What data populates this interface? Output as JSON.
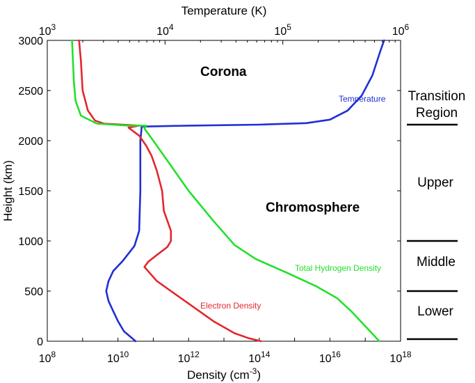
{
  "chart_data": {
    "type": "line",
    "title": "",
    "xlabel_bottom": {
      "prefix": "Density (cm",
      "exponent": "-3",
      "suffix": ")"
    },
    "xlabel_top": "Temperature (K)",
    "ylabel": "Height (km)",
    "xlim_bottom_log10": [
      8,
      18
    ],
    "xlim_top_log10": [
      3,
      6
    ],
    "ylim": [
      0,
      3000
    ],
    "xticks_bottom": [
      {
        "base": "10",
        "exp": "8",
        "log": 8
      },
      {
        "base": "10",
        "exp": "10",
        "log": 10
      },
      {
        "base": "10",
        "exp": "12",
        "log": 12
      },
      {
        "base": "10",
        "exp": "14",
        "log": 14
      },
      {
        "base": "10",
        "exp": "16",
        "log": 16
      },
      {
        "base": "10",
        "exp": "18",
        "log": 18
      }
    ],
    "xticks_top": [
      {
        "base": "10",
        "exp": "3",
        "log": 3
      },
      {
        "base": "10",
        "exp": "4",
        "log": 4
      },
      {
        "base": "10",
        "exp": "5",
        "log": 5
      },
      {
        "base": "10",
        "exp": "6",
        "log": 6
      }
    ],
    "yticks": [
      "0",
      "500",
      "1000",
      "1500",
      "2000",
      "2500",
      "3000"
    ],
    "series": [
      {
        "name": "Temperature",
        "axis": "top",
        "color": "#1d2fd6",
        "points": [
          [
            3.75,
            0
          ],
          [
            3.7,
            50
          ],
          [
            3.65,
            100
          ],
          [
            3.6,
            200
          ],
          [
            3.56,
            300
          ],
          [
            3.52,
            400
          ],
          [
            3.5,
            500
          ],
          [
            3.52,
            600
          ],
          [
            3.56,
            700
          ],
          [
            3.64,
            800
          ],
          [
            3.74,
            950
          ],
          [
            3.78,
            1100
          ],
          [
            3.79,
            1500
          ],
          [
            3.79,
            2000
          ],
          [
            3.8,
            2120
          ],
          [
            3.8,
            2140
          ],
          [
            4.2,
            2150
          ],
          [
            4.8,
            2160
          ],
          [
            5.2,
            2175
          ],
          [
            5.4,
            2210
          ],
          [
            5.55,
            2300
          ],
          [
            5.67,
            2450
          ],
          [
            5.76,
            2650
          ],
          [
            5.83,
            2900
          ],
          [
            5.86,
            3000
          ]
        ]
      },
      {
        "name": "Electron Density",
        "axis": "bottom",
        "color": "#e3262d",
        "points": [
          [
            14.05,
            0
          ],
          [
            13.7,
            30
          ],
          [
            13.3,
            80
          ],
          [
            12.7,
            200
          ],
          [
            12.1,
            350
          ],
          [
            11.5,
            500
          ],
          [
            11.1,
            600
          ],
          [
            10.85,
            700
          ],
          [
            10.75,
            740
          ],
          [
            10.85,
            790
          ],
          [
            11.1,
            860
          ],
          [
            11.4,
            940
          ],
          [
            11.5,
            1000
          ],
          [
            11.5,
            1100
          ],
          [
            11.4,
            1200
          ],
          [
            11.3,
            1300
          ],
          [
            11.25,
            1500
          ],
          [
            11.1,
            1700
          ],
          [
            10.95,
            1850
          ],
          [
            10.8,
            1950
          ],
          [
            10.6,
            2050
          ],
          [
            10.3,
            2130
          ],
          [
            10.6,
            2150
          ],
          [
            9.6,
            2170
          ],
          [
            9.35,
            2200
          ],
          [
            9.15,
            2300
          ],
          [
            9.0,
            2500
          ],
          [
            8.95,
            2800
          ],
          [
            8.9,
            3000
          ]
        ]
      },
      {
        "name": "Total Hydrogen Density",
        "axis": "bottom",
        "color": "#22e02a",
        "points": [
          [
            17.4,
            0
          ],
          [
            17.0,
            150
          ],
          [
            16.6,
            300
          ],
          [
            16.2,
            430
          ],
          [
            15.6,
            550
          ],
          [
            14.8,
            680
          ],
          [
            13.9,
            820
          ],
          [
            13.3,
            960
          ],
          [
            12.7,
            1200
          ],
          [
            12.0,
            1500
          ],
          [
            11.4,
            1800
          ],
          [
            11.0,
            2000
          ],
          [
            10.75,
            2120
          ],
          [
            10.8,
            2150
          ],
          [
            10.3,
            2150
          ],
          [
            9.4,
            2170
          ],
          [
            8.95,
            2250
          ],
          [
            8.8,
            2400
          ],
          [
            8.75,
            2600
          ],
          [
            8.7,
            3000
          ]
        ]
      }
    ],
    "annotations": {
      "corona": "Corona",
      "chromosphere": "Chromosphere",
      "temperature": "Temperature",
      "electron_density": "Electron Density",
      "total_hydrogen_density": "Total Hydrogen Density"
    },
    "regions": {
      "transition_line1": "Transition",
      "transition_line2": "Region",
      "upper": "Upper",
      "middle": "Middle",
      "lower": "Lower"
    },
    "region_boundaries": [
      0,
      500,
      1000,
      2160
    ]
  }
}
